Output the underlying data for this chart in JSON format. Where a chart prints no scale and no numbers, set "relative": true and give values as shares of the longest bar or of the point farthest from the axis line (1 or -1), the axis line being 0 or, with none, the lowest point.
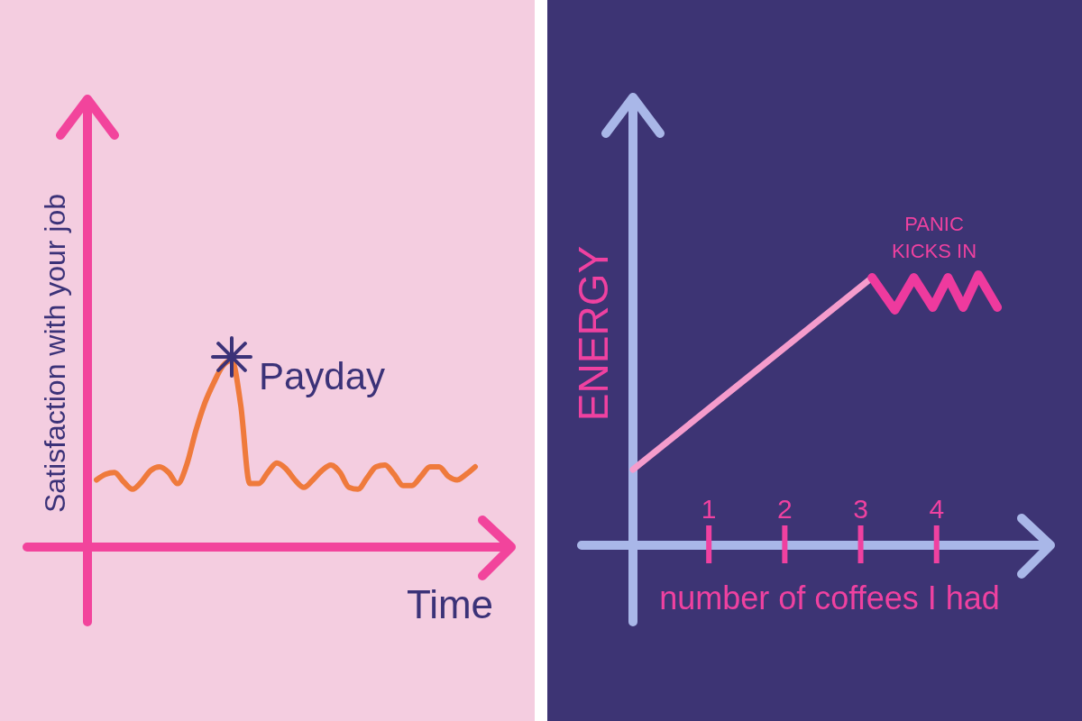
{
  "chart_data": [
    {
      "type": "line",
      "relative": true,
      "xlabel": "Time",
      "ylabel": "Satisfaction with your job",
      "categories": [
        null,
        null,
        null,
        null,
        null,
        null,
        null,
        null,
        null,
        null,
        null,
        null,
        null,
        null,
        null,
        null,
        null,
        null,
        null,
        null,
        null,
        null,
        null,
        null,
        null,
        null,
        null,
        null,
        null,
        null,
        null,
        null,
        null,
        null,
        null,
        null,
        null,
        null,
        null,
        null,
        null,
        null,
        null
      ],
      "series": [
        {
          "color": "#ef7a3c",
          "values": [
            0.36,
            0.39,
            0.4,
            0.35,
            0.31,
            0.35,
            0.41,
            0.43,
            0.4,
            0.34,
            0.44,
            0.62,
            0.77,
            0.88,
            0.97,
            1,
            0.76,
            0.34,
            0.34,
            0.4,
            0.45,
            0.42,
            0.36,
            0.32,
            0.36,
            0.41,
            0.44,
            0.4,
            0.32,
            0.31,
            0.37,
            0.43,
            0.44,
            0.39,
            0.33,
            0.33,
            0.38,
            0.43,
            0.43,
            0.38,
            0.36,
            0.39,
            0.43
          ]
        }
      ],
      "annotations": [
        "Payday"
      ],
      "tick_labels": false
    },
    {
      "type": "line",
      "relative": true,
      "xlabel": "number of coffees I had",
      "ylabel": "ENERGY",
      "xlim": [
        0,
        5.5
      ],
      "xticks": [
        1,
        2,
        3,
        4
      ],
      "series": [
        {
          "color": "#f59ccc",
          "x": [
            0,
            3.15
          ],
          "values": [
            0.28,
            0.99
          ]
        },
        {
          "color": "#ee3a9e",
          "x": [
            3.15,
            3.45,
            3.7,
            3.95,
            4.15,
            4.35,
            4.55,
            4.8
          ],
          "values": [
            0.99,
            0.87,
            0.99,
            0.88,
            0.99,
            0.88,
            1,
            0.88
          ]
        }
      ],
      "annotations": [
        "PANIC KICKS IN"
      ],
      "tick_labels": "x"
    }
  ]
}
